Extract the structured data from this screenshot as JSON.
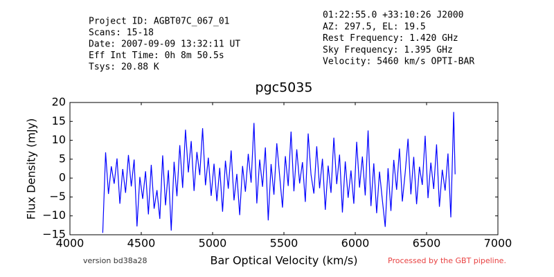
{
  "chart_data": {
    "type": "line",
    "title": "pgc5035",
    "header_left": [
      "Project ID: AGBT07C_067_01",
      "Scans: 15-18",
      "Date: 2007-09-09 13:32:11 UT",
      "Eff Int Time: 0h 8m 50.5s",
      "Tsys: 20.88 K"
    ],
    "header_right": [
      "01:22:55.0 +33:10:26 J2000",
      "AZ: 297.5, EL: 19.5",
      "Rest Frequency:   1.420 GHz",
      "Sky Frequency:    1.395 GHz",
      "Velocity: 5460 km/s OPTI-BAR"
    ],
    "footer_left": "version bd38a28",
    "footer_right": "Processed by the GBT pipeline.",
    "x_label": "Bar Optical Velocity (km/s)",
    "y_label": "Flux Density (mJy)",
    "color": "#0000ff",
    "xlim": [
      4000,
      7000
    ],
    "ylim": [
      -15,
      20
    ],
    "xticks": [
      4000,
      4500,
      5000,
      5500,
      6000,
      6500,
      7000
    ],
    "yticks": [
      {
        "value": -15,
        "label": "−15"
      },
      {
        "value": -10,
        "label": "−10"
      },
      {
        "value": -5,
        "label": "−5"
      },
      0,
      5,
      10,
      15,
      20
    ],
    "x": [
      4230,
      4250,
      4270,
      4290,
      4310,
      4330,
      4350,
      4370,
      4390,
      4410,
      4430,
      4450,
      4470,
      4490,
      4510,
      4530,
      4550,
      4570,
      4590,
      4610,
      4630,
      4650,
      4670,
      4690,
      4710,
      4730,
      4750,
      4770,
      4790,
      4810,
      4830,
      4850,
      4870,
      4890,
      4910,
      4930,
      4950,
      4970,
      4990,
      5010,
      5030,
      5050,
      5070,
      5090,
      5110,
      5130,
      5150,
      5170,
      5190,
      5210,
      5230,
      5250,
      5270,
      5290,
      5310,
      5330,
      5350,
      5370,
      5390,
      5410,
      5430,
      5450,
      5470,
      5490,
      5510,
      5530,
      5550,
      5570,
      5590,
      5610,
      5630,
      5650,
      5670,
      5690,
      5710,
      5730,
      5750,
      5770,
      5790,
      5810,
      5830,
      5850,
      5870,
      5890,
      5910,
      5930,
      5950,
      5970,
      5990,
      6010,
      6030,
      6050,
      6070,
      6090,
      6110,
      6130,
      6150,
      6170,
      6190,
      6210,
      6230,
      6250,
      6270,
      6290,
      6310,
      6330,
      6350,
      6370,
      6390,
      6410,
      6430,
      6450,
      6470,
      6490,
      6510,
      6530,
      6550,
      6570,
      6590,
      6610,
      6630,
      6650,
      6670,
      6690,
      6700
    ],
    "values": [
      -14.5,
      6.8,
      -4.2,
      3.1,
      -1.5,
      5.2,
      -6.8,
      2.4,
      -3.9,
      6.1,
      -2.2,
      4.9,
      -12.8,
      0.3,
      -5.5,
      1.8,
      -9.6,
      3.5,
      -8.1,
      -3.2,
      -10.8,
      6.0,
      -7.2,
      2.1,
      -13.9,
      4.3,
      -4.8,
      8.7,
      -2.6,
      12.8,
      1.5,
      9.8,
      -3.4,
      6.9,
      0.8,
      13.2,
      -1.9,
      5.4,
      -4.7,
      3.8,
      -6.1,
      2.7,
      -8.9,
      4.6,
      -2.8,
      7.3,
      -5.9,
      1.1,
      -9.8,
      3.2,
      -3.6,
      6.4,
      -1.2,
      14.6,
      -6.7,
      4.9,
      -2.3,
      8.1,
      -11.2,
      3.7,
      -4.4,
      9.2,
      0.6,
      -7.8,
      5.8,
      -2.1,
      12.3,
      -3.5,
      7.6,
      -1.4,
      4.2,
      -6.3,
      11.8,
      0.9,
      -4.1,
      8.4,
      -2.7,
      5.1,
      -8.4,
      3.3,
      -3.9,
      10.7,
      -1.6,
      6.2,
      -9.1,
      4.4,
      -5.2,
      2.0,
      -6.8,
      9.6,
      -2.5,
      5.7,
      -4.6,
      12.6,
      -7.4,
      3.9,
      -9.3,
      1.7,
      -5.8,
      -12.9,
      2.6,
      -8.7,
      4.8,
      -3.1,
      7.8,
      -6.2,
      1.4,
      10.4,
      -4.3,
      5.6,
      -6.9,
      3.0,
      -1.8,
      11.2,
      -5.3,
      4.1,
      -2.9,
      8.9,
      -7.6,
      2.2,
      -3.3,
      6.5,
      -10.4,
      17.5,
      1.0
    ]
  }
}
